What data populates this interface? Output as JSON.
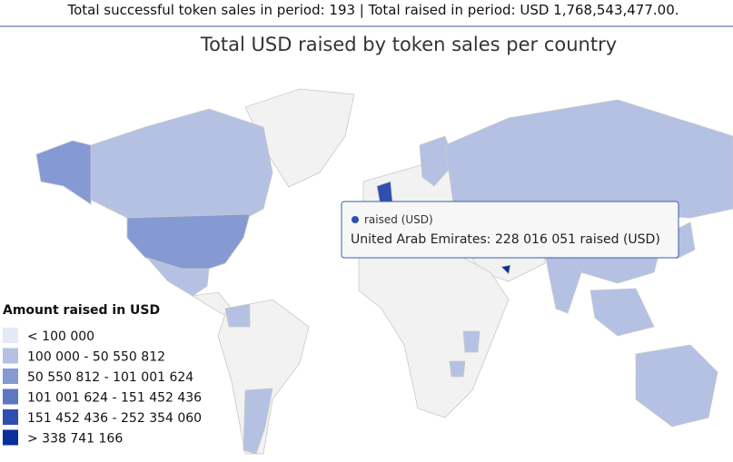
{
  "header": "Total successful token sales in period: 193 | Total raised in period: USD 1,768,543,477.00.",
  "map": {
    "title": "Total USD raised by token sales per country",
    "legend": {
      "title": "Amount raised in USD",
      "items": [
        {
          "label": "< 100 000",
          "color": "#e6e9f6"
        },
        {
          "label": "100 000 - 50 550 812",
          "color": "#b4c1e3"
        },
        {
          "label": "50 550 812 - 101 001 624",
          "color": "#8599d3"
        },
        {
          "label": "101 001 624 - 151 452 436",
          "color": "#5d77c0"
        },
        {
          "label": "151 452 436 - 252 354 060",
          "color": "#2e4fae"
        },
        {
          "label": "> 338 741 166",
          "color": "#0a2e9a"
        }
      ]
    },
    "tooltip": {
      "series": "raised (USD)",
      "text": "United Arab Emirates: 228 016 051 raised (USD)"
    }
  }
}
